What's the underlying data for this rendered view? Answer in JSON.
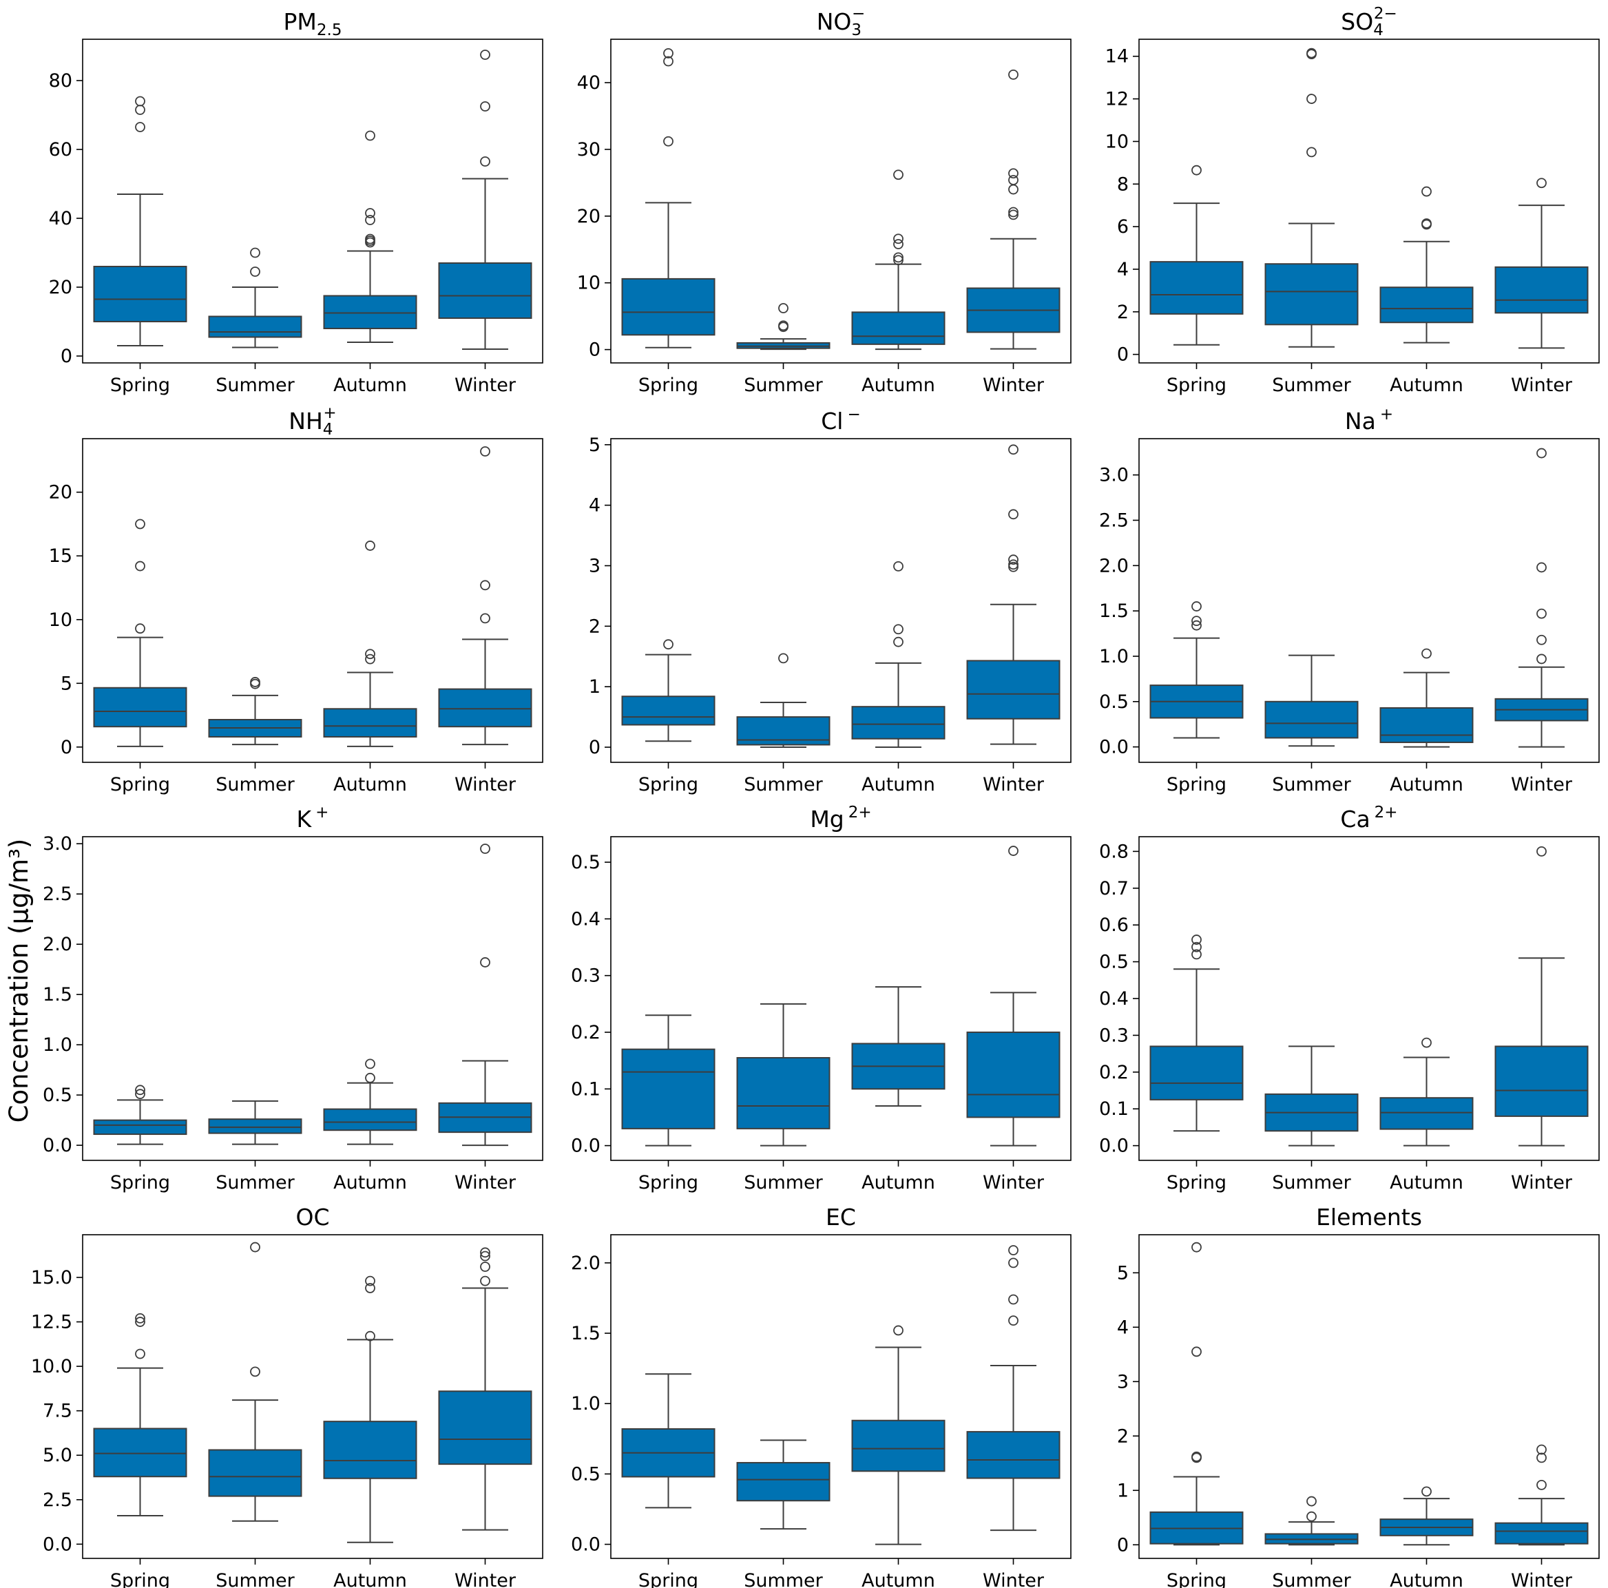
{
  "figure": {
    "ylabel": "Concentration (µg/m³)"
  },
  "chart_data": [
    {
      "type": "box",
      "title": "PM",
      "title_sub": "2.5",
      "title_sup": "",
      "categories": [
        "Spring",
        "Summer",
        "Autumn",
        "Winter"
      ],
      "ylim": [
        -2,
        92
      ],
      "yticks": [
        0,
        20,
        40,
        60,
        80
      ],
      "yticklabels": [
        "0",
        "20",
        "40",
        "60",
        "80"
      ],
      "boxes": [
        {
          "q1": 10,
          "median": 16.5,
          "q3": 26,
          "whislo": 3,
          "whishi": 47,
          "fliers": [
            66.5,
            71.5,
            74
          ]
        },
        {
          "q1": 5.5,
          "median": 7,
          "q3": 11.5,
          "whislo": 2.5,
          "whishi": 20,
          "fliers": [
            24.5,
            30
          ]
        },
        {
          "q1": 8,
          "median": 12.5,
          "q3": 17.5,
          "whislo": 4,
          "whishi": 30.5,
          "fliers": [
            33,
            33.5,
            34,
            39.5,
            41.5,
            64
          ]
        },
        {
          "q1": 11,
          "median": 17.5,
          "q3": 27,
          "whislo": 2,
          "whishi": 51.5,
          "fliers": [
            56.5,
            72.5,
            87.5
          ]
        }
      ]
    },
    {
      "type": "box",
      "title": "NO",
      "title_sub": "3",
      "title_sup": "−",
      "categories": [
        "Spring",
        "Summer",
        "Autumn",
        "Winter"
      ],
      "ylim": [
        -2,
        46.5
      ],
      "yticks": [
        0,
        10,
        20,
        30,
        40
      ],
      "yticklabels": [
        "0",
        "10",
        "20",
        "30",
        "40"
      ],
      "boxes": [
        {
          "q1": 2.2,
          "median": 5.6,
          "q3": 10.6,
          "whislo": 0.3,
          "whishi": 22,
          "fliers": [
            31.2,
            43.2,
            44.4
          ]
        },
        {
          "q1": 0.2,
          "median": 0.5,
          "q3": 1.0,
          "whislo": 0.05,
          "whishi": 1.6,
          "fliers": [
            3.4,
            3.6,
            6.2
          ]
        },
        {
          "q1": 0.8,
          "median": 2.0,
          "q3": 5.6,
          "whislo": 0.05,
          "whishi": 12.8,
          "fliers": [
            13.4,
            13.8,
            15.8,
            16.6,
            26.2
          ]
        },
        {
          "q1": 2.6,
          "median": 5.9,
          "q3": 9.2,
          "whislo": 0.1,
          "whishi": 16.6,
          "fliers": [
            20.2,
            20.6,
            24,
            25.4,
            26.4,
            41.2
          ]
        }
      ]
    },
    {
      "type": "box",
      "title": "SO",
      "title_sub": "4",
      "title_sup": "2−",
      "categories": [
        "Spring",
        "Summer",
        "Autumn",
        "Winter"
      ],
      "ylim": [
        -0.4,
        14.8
      ],
      "yticks": [
        0,
        2,
        4,
        6,
        8,
        10,
        12,
        14
      ],
      "yticklabels": [
        "0",
        "2",
        "4",
        "6",
        "8",
        "10",
        "12",
        "14"
      ],
      "boxes": [
        {
          "q1": 1.9,
          "median": 2.8,
          "q3": 4.35,
          "whislo": 0.45,
          "whishi": 7.1,
          "fliers": [
            8.65
          ]
        },
        {
          "q1": 1.4,
          "median": 2.95,
          "q3": 4.25,
          "whislo": 0.35,
          "whishi": 6.15,
          "fliers": [
            9.5,
            12,
            14.1,
            14.15
          ]
        },
        {
          "q1": 1.5,
          "median": 2.15,
          "q3": 3.15,
          "whislo": 0.55,
          "whishi": 5.3,
          "fliers": [
            6.1,
            6.15,
            7.65
          ]
        },
        {
          "q1": 1.95,
          "median": 2.55,
          "q3": 4.1,
          "whislo": 0.3,
          "whishi": 7.0,
          "fliers": [
            8.05
          ]
        }
      ]
    },
    {
      "type": "box",
      "title": "NH",
      "title_sub": "4",
      "title_sup": "+",
      "categories": [
        "Spring",
        "Summer",
        "Autumn",
        "Winter"
      ],
      "ylim": [
        -1.2,
        24.2
      ],
      "yticks": [
        0,
        5,
        10,
        15,
        20
      ],
      "yticklabels": [
        "0",
        "5",
        "10",
        "15",
        "20"
      ],
      "boxes": [
        {
          "q1": 1.6,
          "median": 2.8,
          "q3": 4.65,
          "whislo": 0.05,
          "whishi": 8.6,
          "fliers": [
            9.3,
            14.2,
            17.5
          ]
        },
        {
          "q1": 0.8,
          "median": 1.5,
          "q3": 2.15,
          "whislo": 0.2,
          "whishi": 4.05,
          "fliers": [
            4.95,
            5.1
          ]
        },
        {
          "q1": 0.8,
          "median": 1.65,
          "q3": 3.0,
          "whislo": 0.05,
          "whishi": 5.85,
          "fliers": [
            6.9,
            7.3,
            15.8
          ]
        },
        {
          "q1": 1.6,
          "median": 3.0,
          "q3": 4.55,
          "whislo": 0.2,
          "whishi": 8.45,
          "fliers": [
            10.1,
            12.7,
            23.2
          ]
        }
      ]
    },
    {
      "type": "box",
      "title": "Cl",
      "title_sub": "",
      "title_sup": "−",
      "categories": [
        "Spring",
        "Summer",
        "Autumn",
        "Winter"
      ],
      "ylim": [
        -0.25,
        5.1
      ],
      "yticks": [
        0,
        1,
        2,
        3,
        4,
        5
      ],
      "yticklabels": [
        "0",
        "1",
        "2",
        "3",
        "4",
        "5"
      ],
      "boxes": [
        {
          "q1": 0.37,
          "median": 0.5,
          "q3": 0.84,
          "whislo": 0.1,
          "whishi": 1.53,
          "fliers": [
            1.7
          ]
        },
        {
          "q1": 0.04,
          "median": 0.12,
          "q3": 0.5,
          "whislo": 0.0,
          "whishi": 0.74,
          "fliers": [
            1.47
          ]
        },
        {
          "q1": 0.14,
          "median": 0.38,
          "q3": 0.67,
          "whislo": 0.0,
          "whishi": 1.39,
          "fliers": [
            1.74,
            1.95,
            2.99
          ]
        },
        {
          "q1": 0.47,
          "median": 0.88,
          "q3": 1.43,
          "whislo": 0.05,
          "whishi": 2.36,
          "fliers": [
            2.98,
            3.02,
            3.1,
            3.85,
            4.92
          ]
        }
      ]
    },
    {
      "type": "box",
      "title": "Na",
      "title_sub": "",
      "title_sup": "+",
      "categories": [
        "Spring",
        "Summer",
        "Autumn",
        "Winter"
      ],
      "ylim": [
        -0.17,
        3.4
      ],
      "yticks": [
        0.0,
        0.5,
        1.0,
        1.5,
        2.0,
        2.5,
        3.0
      ],
      "yticklabels": [
        "0.0",
        "0.5",
        "1.0",
        "1.5",
        "2.0",
        "2.5",
        "3.0"
      ],
      "boxes": [
        {
          "q1": 0.32,
          "median": 0.5,
          "q3": 0.68,
          "whislo": 0.1,
          "whishi": 1.2,
          "fliers": [
            1.34,
            1.39,
            1.55
          ]
        },
        {
          "q1": 0.1,
          "median": 0.26,
          "q3": 0.5,
          "whislo": 0.01,
          "whishi": 1.01,
          "fliers": []
        },
        {
          "q1": 0.05,
          "median": 0.13,
          "q3": 0.43,
          "whislo": 0.0,
          "whishi": 0.82,
          "fliers": [
            1.03
          ]
        },
        {
          "q1": 0.29,
          "median": 0.41,
          "q3": 0.53,
          "whislo": 0.0,
          "whishi": 0.88,
          "fliers": [
            0.97,
            1.18,
            1.47,
            1.98,
            3.24
          ]
        }
      ]
    },
    {
      "type": "box",
      "title": "K",
      "title_sub": "",
      "title_sup": "+",
      "categories": [
        "Spring",
        "Summer",
        "Autumn",
        "Winter"
      ],
      "ylim": [
        -0.15,
        3.07
      ],
      "yticks": [
        0.0,
        0.5,
        1.0,
        1.5,
        2.0,
        2.5,
        3.0
      ],
      "yticklabels": [
        "0.0",
        "0.5",
        "1.0",
        "1.5",
        "2.0",
        "2.5",
        "3.0"
      ],
      "boxes": [
        {
          "q1": 0.11,
          "median": 0.2,
          "q3": 0.25,
          "whislo": 0.01,
          "whishi": 0.45,
          "fliers": [
            0.51,
            0.55
          ]
        },
        {
          "q1": 0.12,
          "median": 0.18,
          "q3": 0.26,
          "whislo": 0.01,
          "whishi": 0.44,
          "fliers": []
        },
        {
          "q1": 0.15,
          "median": 0.23,
          "q3": 0.36,
          "whislo": 0.01,
          "whishi": 0.62,
          "fliers": [
            0.67,
            0.81
          ]
        },
        {
          "q1": 0.13,
          "median": 0.28,
          "q3": 0.42,
          "whislo": 0.0,
          "whishi": 0.84,
          "fliers": [
            1.82,
            2.95
          ]
        }
      ]
    },
    {
      "type": "box",
      "title": "Mg",
      "title_sub": "",
      "title_sup": "2+",
      "categories": [
        "Spring",
        "Summer",
        "Autumn",
        "Winter"
      ],
      "ylim": [
        -0.026,
        0.545
      ],
      "yticks": [
        0.0,
        0.1,
        0.2,
        0.3,
        0.4,
        0.5
      ],
      "yticklabels": [
        "0.0",
        "0.1",
        "0.2",
        "0.3",
        "0.4",
        "0.5"
      ],
      "boxes": [
        {
          "q1": 0.03,
          "median": 0.13,
          "q3": 0.17,
          "whislo": 0.0,
          "whishi": 0.23,
          "fliers": []
        },
        {
          "q1": 0.03,
          "median": 0.07,
          "q3": 0.155,
          "whislo": 0.0,
          "whishi": 0.25,
          "fliers": []
        },
        {
          "q1": 0.1,
          "median": 0.14,
          "q3": 0.18,
          "whislo": 0.07,
          "whishi": 0.28,
          "fliers": []
        },
        {
          "q1": 0.05,
          "median": 0.09,
          "q3": 0.2,
          "whislo": 0.0,
          "whishi": 0.27,
          "fliers": [
            0.52
          ]
        }
      ]
    },
    {
      "type": "box",
      "title": "Ca",
      "title_sub": "",
      "title_sup": "2+",
      "categories": [
        "Spring",
        "Summer",
        "Autumn",
        "Winter"
      ],
      "ylim": [
        -0.04,
        0.84
      ],
      "yticks": [
        0.0,
        0.1,
        0.2,
        0.3,
        0.4,
        0.5,
        0.6,
        0.7,
        0.8
      ],
      "yticklabels": [
        "0.0",
        "0.1",
        "0.2",
        "0.3",
        "0.4",
        "0.5",
        "0.6",
        "0.7",
        "0.8"
      ],
      "boxes": [
        {
          "q1": 0.125,
          "median": 0.17,
          "q3": 0.27,
          "whislo": 0.04,
          "whishi": 0.48,
          "fliers": [
            0.52,
            0.54,
            0.56
          ]
        },
        {
          "q1": 0.04,
          "median": 0.09,
          "q3": 0.14,
          "whislo": 0.0,
          "whishi": 0.27,
          "fliers": []
        },
        {
          "q1": 0.045,
          "median": 0.09,
          "q3": 0.13,
          "whislo": 0.0,
          "whishi": 0.24,
          "fliers": [
            0.28
          ]
        },
        {
          "q1": 0.08,
          "median": 0.15,
          "q3": 0.27,
          "whislo": 0.0,
          "whishi": 0.51,
          "fliers": [
            0.8
          ]
        }
      ]
    },
    {
      "type": "box",
      "title": "OC",
      "title_sub": "",
      "title_sup": "",
      "categories": [
        "Spring",
        "Summer",
        "Autumn",
        "Winter"
      ],
      "ylim": [
        -0.8,
        17.4
      ],
      "yticks": [
        0.0,
        2.5,
        5.0,
        7.5,
        10.0,
        12.5,
        15.0
      ],
      "yticklabels": [
        "0.0",
        "2.5",
        "5.0",
        "7.5",
        "10.0",
        "12.5",
        "15.0"
      ],
      "boxes": [
        {
          "q1": 3.8,
          "median": 5.1,
          "q3": 6.5,
          "whislo": 1.6,
          "whishi": 9.9,
          "fliers": [
            10.7,
            12.5,
            12.7
          ]
        },
        {
          "q1": 2.7,
          "median": 3.8,
          "q3": 5.3,
          "whislo": 1.3,
          "whishi": 8.1,
          "fliers": [
            9.7,
            16.7
          ]
        },
        {
          "q1": 3.7,
          "median": 4.7,
          "q3": 6.9,
          "whislo": 0.1,
          "whishi": 11.5,
          "fliers": [
            11.7,
            14.4,
            14.8
          ]
        },
        {
          "q1": 4.5,
          "median": 5.9,
          "q3": 8.6,
          "whislo": 0.8,
          "whishi": 14.4,
          "fliers": [
            14.8,
            15.6,
            16.2,
            16.4
          ]
        }
      ]
    },
    {
      "type": "box",
      "title": "EC",
      "title_sub": "",
      "title_sup": "",
      "categories": [
        "Spring",
        "Summer",
        "Autumn",
        "Winter"
      ],
      "ylim": [
        -0.1,
        2.2
      ],
      "yticks": [
        0.0,
        0.5,
        1.0,
        1.5,
        2.0
      ],
      "yticklabels": [
        "0.0",
        "0.5",
        "1.0",
        "1.5",
        "2.0"
      ],
      "boxes": [
        {
          "q1": 0.48,
          "median": 0.65,
          "q3": 0.82,
          "whislo": 0.26,
          "whishi": 1.21,
          "fliers": []
        },
        {
          "q1": 0.31,
          "median": 0.46,
          "q3": 0.58,
          "whislo": 0.11,
          "whishi": 0.74,
          "fliers": []
        },
        {
          "q1": 0.52,
          "median": 0.68,
          "q3": 0.88,
          "whislo": 0.0,
          "whishi": 1.4,
          "fliers": [
            1.52
          ]
        },
        {
          "q1": 0.47,
          "median": 0.6,
          "q3": 0.8,
          "whislo": 0.1,
          "whishi": 1.27,
          "fliers": [
            1.59,
            1.74,
            2.0,
            2.09
          ]
        }
      ]
    },
    {
      "type": "box",
      "title": "Elements",
      "title_sub": "",
      "title_sup": "",
      "categories": [
        "Spring",
        "Summer",
        "Autumn",
        "Winter"
      ],
      "ylim": [
        -0.25,
        5.7
      ],
      "yticks": [
        0,
        1,
        2,
        3,
        4,
        5
      ],
      "yticklabels": [
        "0",
        "1",
        "2",
        "3",
        "4",
        "5"
      ],
      "boxes": [
        {
          "q1": 0.02,
          "median": 0.3,
          "q3": 0.6,
          "whislo": 0.0,
          "whishi": 1.25,
          "fliers": [
            1.6,
            1.62,
            3.55,
            5.47
          ]
        },
        {
          "q1": 0.02,
          "median": 0.1,
          "q3": 0.2,
          "whislo": 0.0,
          "whishi": 0.42,
          "fliers": [
            0.52,
            0.8
          ]
        },
        {
          "q1": 0.17,
          "median": 0.32,
          "q3": 0.47,
          "whislo": 0.0,
          "whishi": 0.85,
          "fliers": [
            0.98
          ]
        },
        {
          "q1": 0.02,
          "median": 0.25,
          "q3": 0.4,
          "whislo": 0.0,
          "whishi": 0.85,
          "fliers": [
            1.1,
            1.6,
            1.75
          ]
        }
      ]
    }
  ]
}
